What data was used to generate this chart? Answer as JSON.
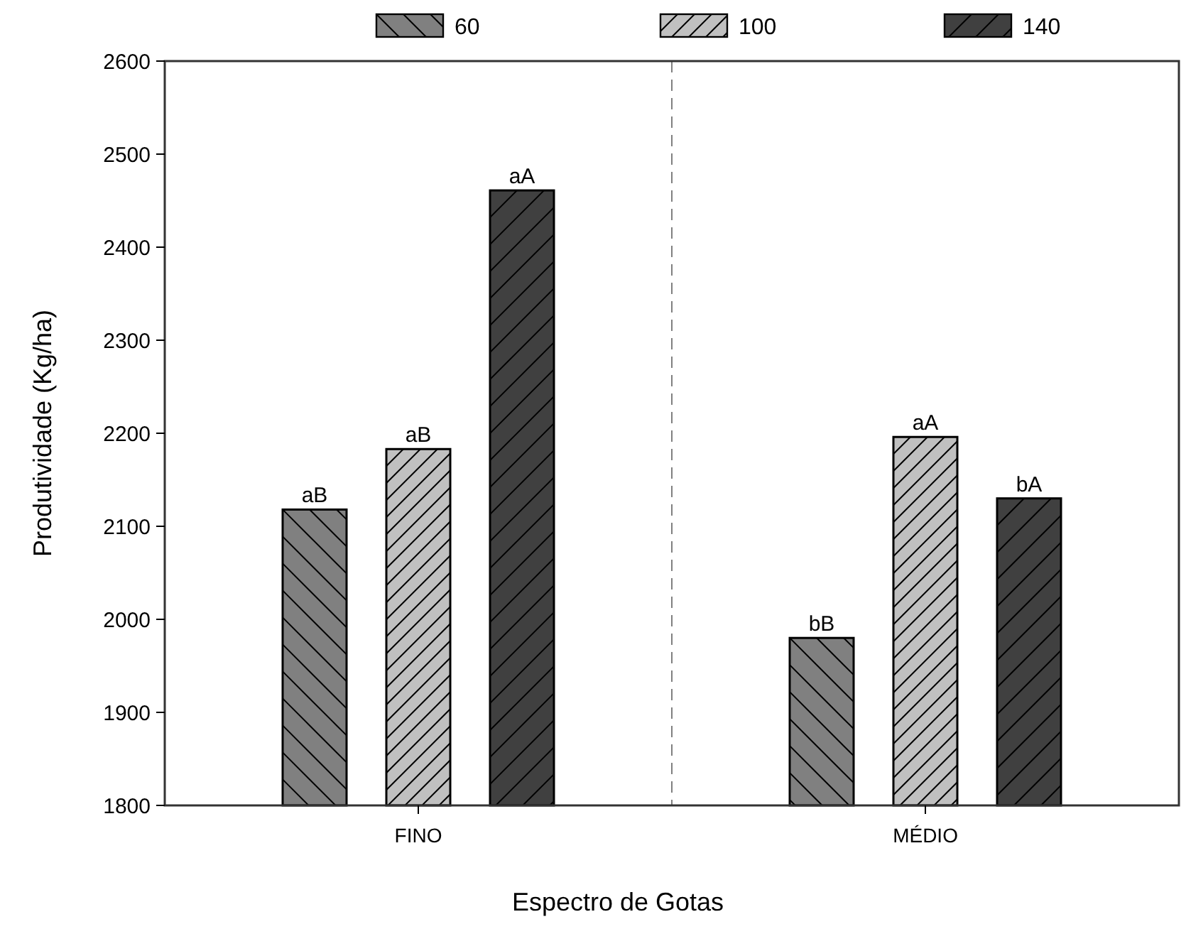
{
  "chart_data": {
    "type": "bar",
    "xlabel": "Espectro de Gotas",
    "ylabel": "Produtividade (Kg/ha)",
    "categories": [
      "FINO",
      "MÉDIO"
    ],
    "series": [
      {
        "name": "60",
        "color": "#808080",
        "values": [
          2118,
          1980
        ],
        "value_labels": [
          "aB",
          "bB"
        ]
      },
      {
        "name": "100",
        "color": "#c0c0c0",
        "values": [
          2183,
          2196
        ],
        "value_labels": [
          "aB",
          "aA"
        ]
      },
      {
        "name": "140",
        "color": "#404040",
        "values": [
          2461,
          2130
        ],
        "value_labels": [
          "aA",
          "bA"
        ]
      }
    ],
    "ylim": [
      1800,
      2600
    ],
    "yticks": [
      1800,
      1900,
      2000,
      2100,
      2200,
      2300,
      2400,
      2500,
      2600
    ],
    "grid": false,
    "legend": "top"
  }
}
